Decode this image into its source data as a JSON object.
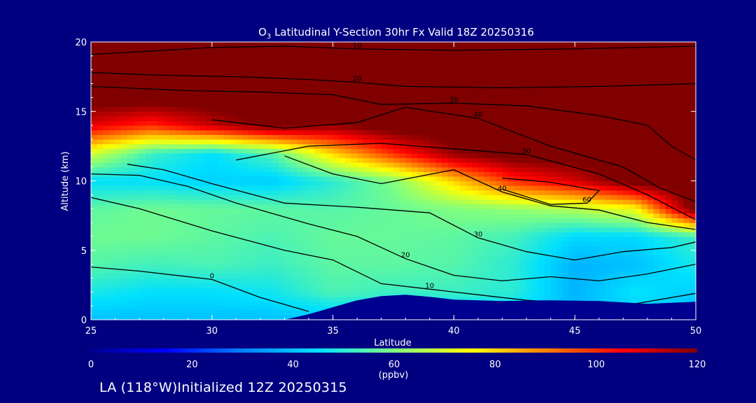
{
  "chart_data": {
    "type": "heatmap",
    "title_prefix": "O",
    "title_sub": "3",
    "title_rest": " Latitudinal Y-Section 30hr  Fx Valid 18Z 20250316",
    "xlabel": "Latitude",
    "ylabel": "Altitude (km)",
    "xlim": [
      25,
      50
    ],
    "ylim": [
      0,
      20
    ],
    "x_ticks": [
      "25",
      "30",
      "35",
      "40",
      "45",
      "50"
    ],
    "y_ticks": [
      "0",
      "5",
      "10",
      "15",
      "20"
    ],
    "colorbar": {
      "min": 0,
      "max": 120,
      "ticks": [
        "0",
        "20",
        "40",
        "60",
        "80",
        "100",
        "120"
      ],
      "units": "(ppbv)",
      "colors": [
        "#000090",
        "#0000ff",
        "#0080ff",
        "#00e0ff",
        "#80ff80",
        "#ffff00",
        "#ff8000",
        "#ff0000",
        "#800000"
      ]
    },
    "lat": [
      25,
      27.5,
      30,
      32.5,
      35,
      37.5,
      40,
      42.5,
      45,
      47.5,
      50
    ],
    "alt": [
      0,
      2,
      4,
      6,
      8,
      10,
      12,
      14,
      16,
      18,
      20
    ],
    "o3": [
      [
        40,
        40,
        40,
        40,
        40,
        40,
        40,
        40,
        40,
        40,
        40
      ],
      [
        48,
        45,
        45,
        47,
        54,
        52,
        52,
        50,
        38,
        46,
        42
      ],
      [
        55,
        53,
        54,
        52,
        56,
        56,
        55,
        50,
        38,
        40,
        48
      ],
      [
        58,
        58,
        56,
        54,
        57,
        57,
        56,
        53,
        44,
        44,
        52
      ],
      [
        56,
        58,
        57,
        56,
        55,
        57,
        60,
        62,
        66,
        74,
        125
      ],
      [
        45,
        45,
        43,
        42,
        50,
        60,
        80,
        100,
        110,
        125,
        125
      ],
      [
        70,
        52,
        45,
        55,
        80,
        100,
        118,
        125,
        125,
        125,
        125
      ],
      [
        108,
        100,
        112,
        122,
        118,
        125,
        125,
        125,
        125,
        125,
        125
      ],
      [
        125,
        125,
        125,
        125,
        125,
        125,
        125,
        125,
        125,
        125,
        125
      ],
      [
        125,
        125,
        125,
        125,
        125,
        125,
        125,
        125,
        125,
        125,
        125
      ],
      [
        125,
        125,
        125,
        125,
        125,
        125,
        125,
        125,
        125,
        125,
        125
      ]
    ],
    "terrain": {
      "lat": [
        25,
        33,
        34,
        35,
        36,
        37,
        38,
        39,
        40,
        42,
        44,
        46,
        48,
        50
      ],
      "alt": [
        0,
        0,
        0.4,
        0.9,
        1.4,
        1.7,
        1.8,
        1.65,
        1.45,
        1.35,
        1.4,
        1.35,
        1.15,
        1.3
      ]
    },
    "contours": [
      {
        "label": "10",
        "points": [
          [
            25,
            19.1
          ],
          [
            27,
            19.3
          ],
          [
            30,
            19.6
          ],
          [
            33,
            19.7
          ],
          [
            36,
            19.5
          ],
          [
            40,
            19.4
          ],
          [
            45,
            19.5
          ],
          [
            50,
            19.7
          ]
        ]
      },
      {
        "label": "20",
        "points": [
          [
            25,
            17.8
          ],
          [
            28,
            17.6
          ],
          [
            31,
            17.5
          ],
          [
            34,
            17.3
          ],
          [
            36,
            17.1
          ],
          [
            38,
            16.8
          ],
          [
            42,
            16.7
          ],
          [
            46,
            16.8
          ],
          [
            50,
            17.0
          ]
        ]
      },
      {
        "label": "30",
        "points": [
          [
            25,
            16.8
          ],
          [
            29,
            16.5
          ],
          [
            32,
            16.4
          ],
          [
            35,
            16.2
          ],
          [
            37,
            15.5
          ],
          [
            40,
            15.6
          ],
          [
            43,
            15.4
          ],
          [
            46,
            14.7
          ],
          [
            48,
            14.0
          ],
          [
            49,
            12.5
          ],
          [
            50,
            11.5
          ]
        ]
      },
      {
        "label": "40",
        "points": [
          [
            30,
            14.4
          ],
          [
            33,
            13.8
          ],
          [
            36,
            14.2
          ],
          [
            38,
            15.3
          ],
          [
            41,
            14.5
          ],
          [
            44,
            12.5
          ],
          [
            47,
            11.0
          ],
          [
            48.5,
            9.5
          ],
          [
            50,
            8.5
          ]
        ]
      },
      {
        "label": "50",
        "points": [
          [
            31,
            11.5
          ],
          [
            34,
            12.5
          ],
          [
            37,
            12.7
          ],
          [
            40,
            12.3
          ],
          [
            43,
            11.9
          ],
          [
            46,
            10.5
          ],
          [
            48,
            9.0
          ],
          [
            50,
            7.2
          ]
        ]
      },
      {
        "label": "60",
        "points": [
          [
            42,
            10.2
          ],
          [
            44,
            9.9
          ],
          [
            46,
            9.3
          ],
          [
            45.5,
            8.4
          ],
          [
            44,
            8.3
          ],
          [
            42,
            9.4
          ]
        ]
      },
      {
        "label": "40",
        "points": [
          [
            33,
            11.8
          ],
          [
            35,
            10.5
          ],
          [
            37,
            9.8
          ],
          [
            40,
            10.8
          ],
          [
            42,
            9.2
          ],
          [
            44,
            8.2
          ],
          [
            46,
            7.9
          ],
          [
            48,
            7.0
          ],
          [
            50,
            6.5
          ]
        ]
      },
      {
        "label": "30",
        "points": [
          [
            26.5,
            11.2
          ],
          [
            28,
            10.8
          ],
          [
            30,
            9.8
          ],
          [
            33,
            8.4
          ],
          [
            36,
            8.1
          ],
          [
            39,
            7.7
          ],
          [
            41,
            5.9
          ],
          [
            43,
            4.9
          ],
          [
            45,
            4.3
          ],
          [
            47,
            4.9
          ],
          [
            49,
            5.2
          ],
          [
            50,
            5.6
          ]
        ]
      },
      {
        "label": "20",
        "points": [
          [
            25,
            10.5
          ],
          [
            27,
            10.4
          ],
          [
            29,
            9.6
          ],
          [
            31,
            8.4
          ],
          [
            34,
            6.9
          ],
          [
            36,
            6.0
          ],
          [
            38,
            4.4
          ],
          [
            40,
            3.2
          ],
          [
            42,
            2.8
          ],
          [
            44,
            3.1
          ],
          [
            46,
            2.8
          ],
          [
            48,
            3.3
          ],
          [
            50,
            4.0
          ]
        ]
      },
      {
        "label": "10",
        "points": [
          [
            25,
            8.8
          ],
          [
            27,
            8.0
          ],
          [
            30,
            6.4
          ],
          [
            33,
            5.0
          ],
          [
            35,
            4.3
          ],
          [
            37,
            2.6
          ],
          [
            39,
            2.2
          ],
          [
            41,
            1.8
          ],
          [
            43,
            1.4
          ],
          [
            45,
            1.2
          ],
          [
            47,
            1.0
          ],
          [
            50,
            1.9
          ]
        ]
      },
      {
        "label": "0",
        "points": [
          [
            25,
            3.8
          ],
          [
            27,
            3.5
          ],
          [
            30,
            2.9
          ],
          [
            32,
            1.6
          ],
          [
            34,
            0.6
          ]
        ]
      }
    ]
  },
  "footer": "LA (118°W)Initialized 12Z 20250315"
}
